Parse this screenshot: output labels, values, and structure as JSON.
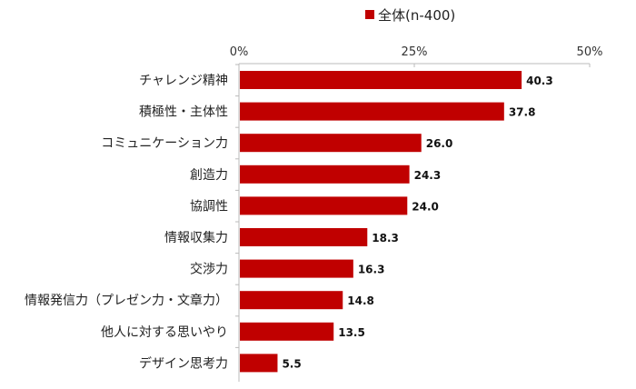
{
  "chart_data": {
    "type": "bar",
    "orientation": "horizontal",
    "title": "",
    "xlabel": "",
    "ylabel": "",
    "categories": [
      "チャレンジ精神",
      "積極性・主体性",
      "コミュニケーション力",
      "創造力",
      "協調性",
      "情報収集力",
      "交渉力",
      "情報発信力（プレゼン力・文章力）",
      "他人に対する思いやり",
      "デザイン思考力"
    ],
    "series": [
      {
        "name": "全体(n-400)",
        "values": [
          40.3,
          37.8,
          26.0,
          24.3,
          24.0,
          18.3,
          16.3,
          14.8,
          13.5,
          5.5
        ],
        "color": "#C00000"
      }
    ],
    "data_labels": [
      "40.3",
      "37.8",
      "26.0",
      "24.3",
      "24.0",
      "18.3",
      "16.3",
      "14.8",
      "13.5",
      "5.5"
    ],
    "xlim": [
      0,
      50
    ],
    "x_ticks": [
      0,
      25,
      50
    ],
    "x_tick_labels": [
      "0%",
      "25%",
      "50%"
    ],
    "x_axis_position": "top",
    "grid": false,
    "legend_position": "top"
  }
}
